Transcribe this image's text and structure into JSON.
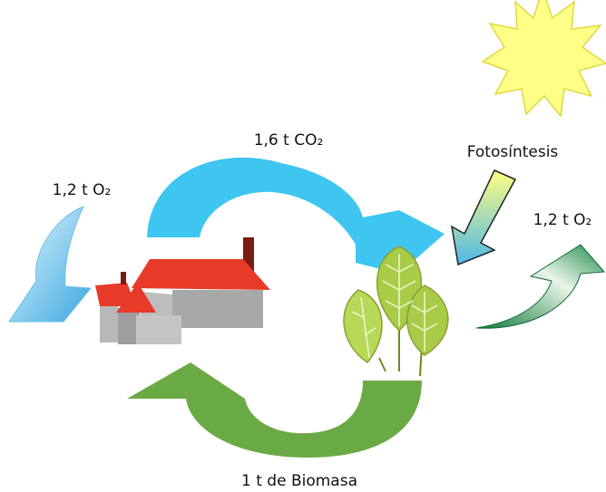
{
  "labels": [
    "1,6 t CO₂",
    "1,2 t O₂",
    "Fotosíntesis",
    "1,2 t O₂",
    "1 t de Biomasa"
  ]
}
